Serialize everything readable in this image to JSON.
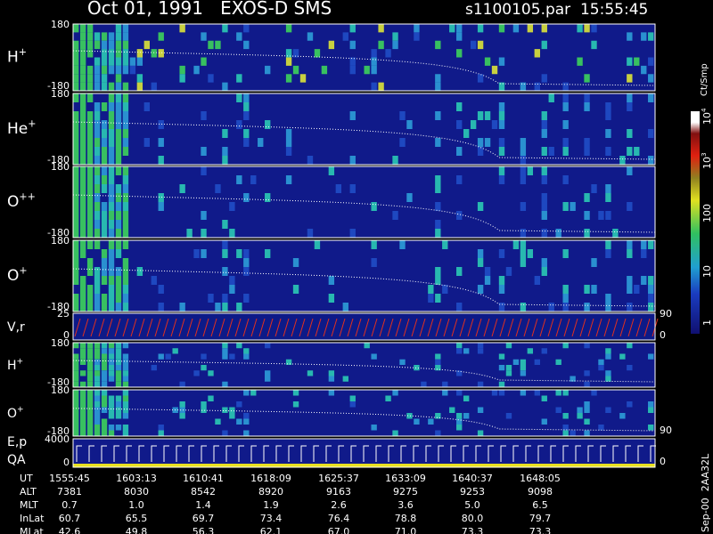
{
  "header": {
    "title": "Oct 01, 1991   EXOS-D SMS",
    "file": "s1100105.par  15:55:45"
  },
  "panels": [
    {
      "label": {
        "base": "H",
        "sup": "+"
      },
      "ticks": [
        "180",
        "-180"
      ]
    },
    {
      "label": {
        "base": "He",
        "sup": "+"
      },
      "ticks": [
        "180",
        "-180"
      ]
    },
    {
      "label": {
        "base": "O",
        "sup": "++"
      },
      "ticks": [
        "180",
        "-180"
      ]
    },
    {
      "label": {
        "base": "O",
        "sup": "+"
      },
      "ticks": [
        "180",
        "-180"
      ]
    },
    {
      "label": {
        "base": "V,r"
      },
      "ticks": [
        "25",
        "0"
      ],
      "right_ticks": [
        "90",
        "0"
      ]
    },
    {
      "label": {
        "base": "H",
        "sup": "+"
      },
      "ticks": [
        "180",
        "-180"
      ]
    },
    {
      "label": {
        "base": "O",
        "sup": "+"
      },
      "ticks": [
        "180",
        "-180"
      ],
      "right_ticks": [
        "90"
      ]
    },
    {
      "label": {
        "base": "E,p",
        "line2": "QA"
      },
      "ticks": [
        "4000",
        "0"
      ],
      "right_ticks": [
        "0"
      ]
    }
  ],
  "colorbar": {
    "unit": "Ct/Smp",
    "labels": [
      {
        "base": "1"
      },
      {
        "base": "10"
      },
      {
        "base": "100"
      },
      {
        "base": "10",
        "sup": "3"
      },
      {
        "base": "10",
        "sup": "4"
      }
    ]
  },
  "table": {
    "rows": [
      {
        "label": "UT",
        "values": [
          "1555:45",
          "1603:13",
          "1610:41",
          "1618:09",
          "1625:37",
          "1633:09",
          "1640:37",
          "1648:05"
        ]
      },
      {
        "label": "ALT",
        "values": [
          "7381",
          "8030",
          "8542",
          "8920",
          "9163",
          "9275",
          "9253",
          "9098"
        ]
      },
      {
        "label": "MLT",
        "values": [
          "0.7",
          "1.0",
          "1.4",
          "1.9",
          "2.6",
          "3.6",
          "5.0",
          "6.5"
        ]
      },
      {
        "label": "InLat",
        "values": [
          "60.7",
          "65.5",
          "69.7",
          "73.4",
          "76.4",
          "78.8",
          "80.0",
          "79.7"
        ]
      },
      {
        "label": "MLat",
        "values": [
          "42.6",
          "49.8",
          "56.3",
          "62.1",
          "67.0",
          "71.0",
          "73.3",
          "73.3"
        ]
      }
    ]
  },
  "footer_note": "Sep-00  2AA32L"
}
